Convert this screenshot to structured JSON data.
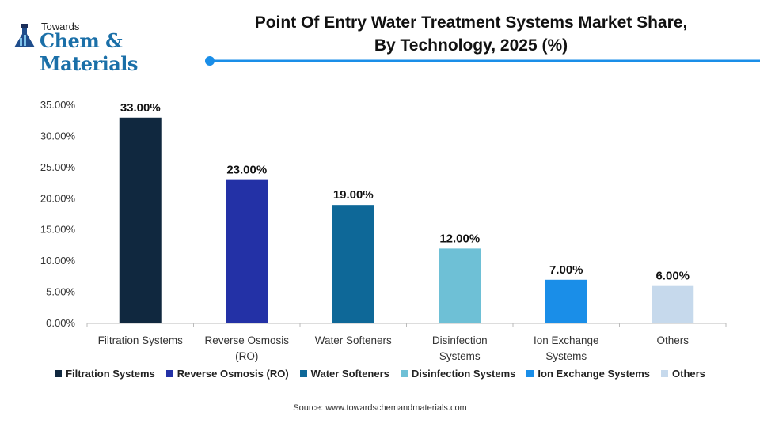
{
  "logo": {
    "top": "Towards",
    "main": "Chem & Materials"
  },
  "source": "Source: www.towardschemandmaterials.com",
  "chart_data": {
    "type": "bar",
    "title": "Point Of Entry Water Treatment Systems Market Share, By Technology, 2025 (%)",
    "title_lines": [
      "Point Of Entry Water Treatment Systems Market Share,",
      "By Technology, 2025 (%)"
    ],
    "categories": [
      "Filtration Systems",
      "Reverse Osmosis (RO)",
      "Water Softeners",
      "Disinfection Systems",
      "Ion Exchange Systems",
      "Others"
    ],
    "category_label_lines": [
      [
        "Filtration Systems"
      ],
      [
        "Reverse Osmosis",
        "(RO)"
      ],
      [
        "Water Softeners"
      ],
      [
        "Disinfection",
        "Systems"
      ],
      [
        "Ion Exchange",
        "Systems"
      ],
      [
        "Others"
      ]
    ],
    "values": [
      33,
      23,
      19,
      12,
      7,
      6
    ],
    "data_labels": [
      "33.00%",
      "23.00%",
      "19.00%",
      "12.00%",
      "7.00%",
      "6.00%"
    ],
    "colors": [
      "#10283f",
      "#2331a6",
      "#0e6898",
      "#6ec0d6",
      "#1a8ee8",
      "#c6d9ec"
    ],
    "ylim": [
      0,
      35
    ],
    "yticks": [
      "0.00%",
      "5.00%",
      "10.00%",
      "15.00%",
      "20.00%",
      "25.00%",
      "30.00%",
      "35.00%"
    ],
    "grid": false,
    "legend": "bottom",
    "xlabel": "",
    "ylabel": ""
  }
}
